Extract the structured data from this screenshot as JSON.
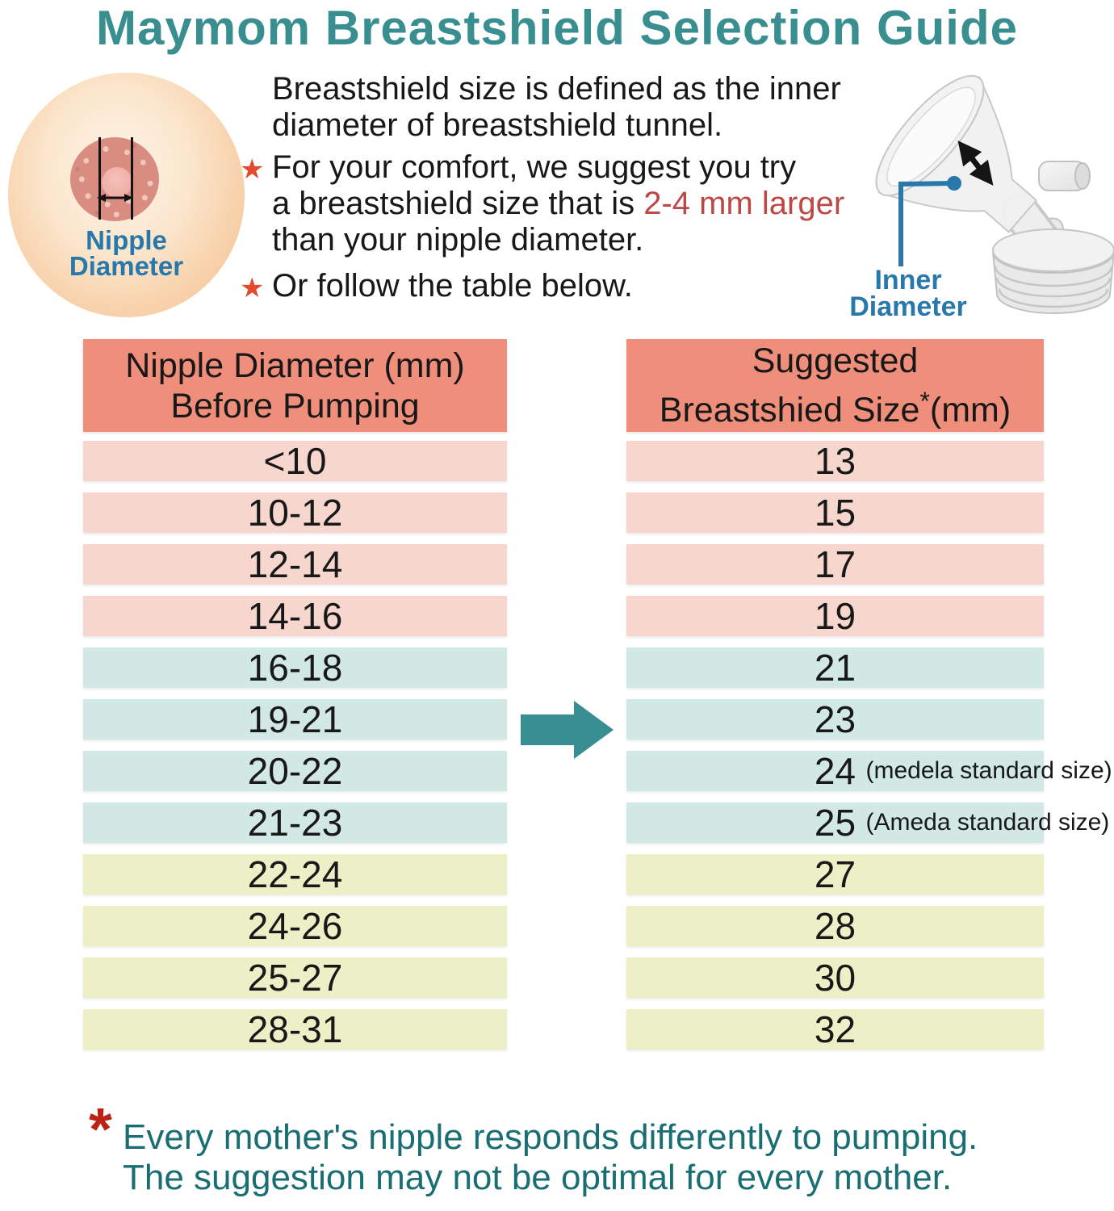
{
  "title": "Maymom Breastshield Selection Guide",
  "colors": {
    "title_teal": "#398e90",
    "footnote_teal": "#186e73",
    "label_blue": "#2878ab",
    "star_red": "#e34b2e",
    "asterisk_red": "#bb2317",
    "highlight_red": "#bd4742",
    "header_salmon": "#f08e7c",
    "row_pink": "#f7d6ce",
    "row_blue": "#d1e8e5",
    "row_yellow": "#edefc6",
    "arrow_teal": "#378f92"
  },
  "nipple_illustration": {
    "label_line1": "Nipple",
    "label_line2": "Diameter"
  },
  "intro": {
    "star_icon": "★",
    "definition_line1": "Breastshield size is defined as the inner",
    "definition_line2": "diameter of breastshield tunnel.",
    "bullet1": {
      "line1": "For your comfort, we suggest you try",
      "line2_pre": "a breastshield size that is ",
      "line2_highlight": "2-4 mm larger",
      "line3": "than your nipple diameter."
    },
    "bullet2": "Or follow the table below."
  },
  "device": {
    "label_line1": "Inner",
    "label_line2": "Diameter"
  },
  "table": {
    "left_header_line1": "Nipple Diameter (mm)",
    "left_header_line2": "Before Pumping",
    "right_header_line1": "Suggested",
    "right_header_line2_pre": "Breastshied Size",
    "right_header_asterisk": "*",
    "right_header_line2_post": "(mm)",
    "rows": [
      {
        "nipple": "<10",
        "size": "13",
        "note": "",
        "band": "pink"
      },
      {
        "nipple": "10-12",
        "size": "15",
        "note": "",
        "band": "pink"
      },
      {
        "nipple": "12-14",
        "size": "17",
        "note": "",
        "band": "pink"
      },
      {
        "nipple": "14-16",
        "size": "19",
        "note": "",
        "band": "pink"
      },
      {
        "nipple": "16-18",
        "size": "21",
        "note": "",
        "band": "blue"
      },
      {
        "nipple": "19-21",
        "size": "23",
        "note": "",
        "band": "blue"
      },
      {
        "nipple": "20-22",
        "size": "24",
        "note": "(medela standard size)",
        "band": "blue"
      },
      {
        "nipple": "21-23",
        "size": "25",
        "note": "(Ameda standard size)",
        "band": "blue"
      },
      {
        "nipple": "22-24",
        "size": "27",
        "note": "",
        "band": "yellow"
      },
      {
        "nipple": "24-26",
        "size": "28",
        "note": "",
        "band": "yellow"
      },
      {
        "nipple": "25-27",
        "size": "30",
        "note": "",
        "band": "yellow"
      },
      {
        "nipple": "28-31",
        "size": "32",
        "note": "",
        "band": "yellow"
      }
    ]
  },
  "footnote": {
    "asterisk": "*",
    "line1": "Every mother's nipple responds differently to pumping.",
    "line2": "The suggestion may not be optimal for every mother."
  }
}
